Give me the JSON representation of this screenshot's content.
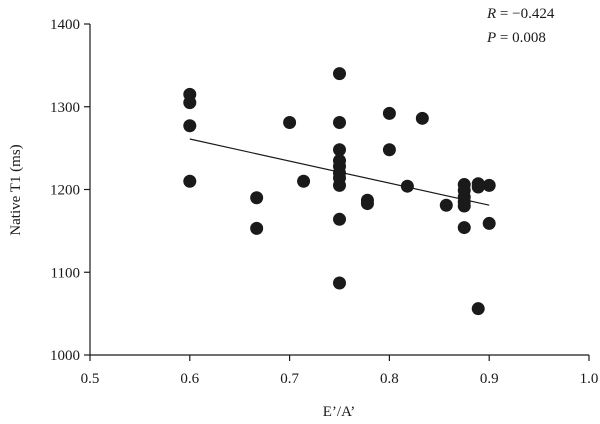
{
  "chart_data": {
    "type": "scatter",
    "xlabel": "E’/A’",
    "ylabel": "Native T1 (ms)",
    "xlim": [
      0.5,
      1.0
    ],
    "ylim": [
      1000,
      1400
    ],
    "xticks": [
      0.5,
      0.6,
      0.7,
      0.8,
      0.9,
      1.0
    ],
    "yticks": [
      1000,
      1100,
      1200,
      1300,
      1400
    ],
    "xtick_labels": [
      "0.5",
      "0.6",
      "0.7",
      "0.8",
      "0.9",
      "1.0"
    ],
    "ytick_labels": [
      "1000",
      "1100",
      "1200",
      "1300",
      "1400"
    ],
    "grid": false,
    "points": [
      [
        0.6,
        1315
      ],
      [
        0.6,
        1305
      ],
      [
        0.6,
        1277
      ],
      [
        0.6,
        1210
      ],
      [
        0.667,
        1190
      ],
      [
        0.667,
        1153
      ],
      [
        0.7,
        1281
      ],
      [
        0.714,
        1210
      ],
      [
        0.75,
        1340
      ],
      [
        0.75,
        1281
      ],
      [
        0.75,
        1248
      ],
      [
        0.75,
        1235
      ],
      [
        0.75,
        1228
      ],
      [
        0.75,
        1220
      ],
      [
        0.75,
        1214
      ],
      [
        0.75,
        1205
      ],
      [
        0.75,
        1164
      ],
      [
        0.75,
        1087
      ],
      [
        0.778,
        1187
      ],
      [
        0.778,
        1183
      ],
      [
        0.8,
        1292
      ],
      [
        0.8,
        1248
      ],
      [
        0.818,
        1204
      ],
      [
        0.833,
        1286
      ],
      [
        0.857,
        1181
      ],
      [
        0.875,
        1206
      ],
      [
        0.875,
        1199
      ],
      [
        0.875,
        1191
      ],
      [
        0.875,
        1185
      ],
      [
        0.875,
        1180
      ],
      [
        0.875,
        1154
      ],
      [
        0.889,
        1207
      ],
      [
        0.889,
        1203
      ],
      [
        0.889,
        1056
      ],
      [
        0.9,
        1205
      ],
      [
        0.9,
        1159
      ]
    ],
    "fit_line": {
      "x": [
        0.6,
        0.9
      ],
      "y": [
        1261,
        1181
      ]
    },
    "stats": {
      "r_label": "R",
      "r_value": " = −0.424",
      "p_label": "P",
      "p_value": " = 0.008"
    }
  }
}
